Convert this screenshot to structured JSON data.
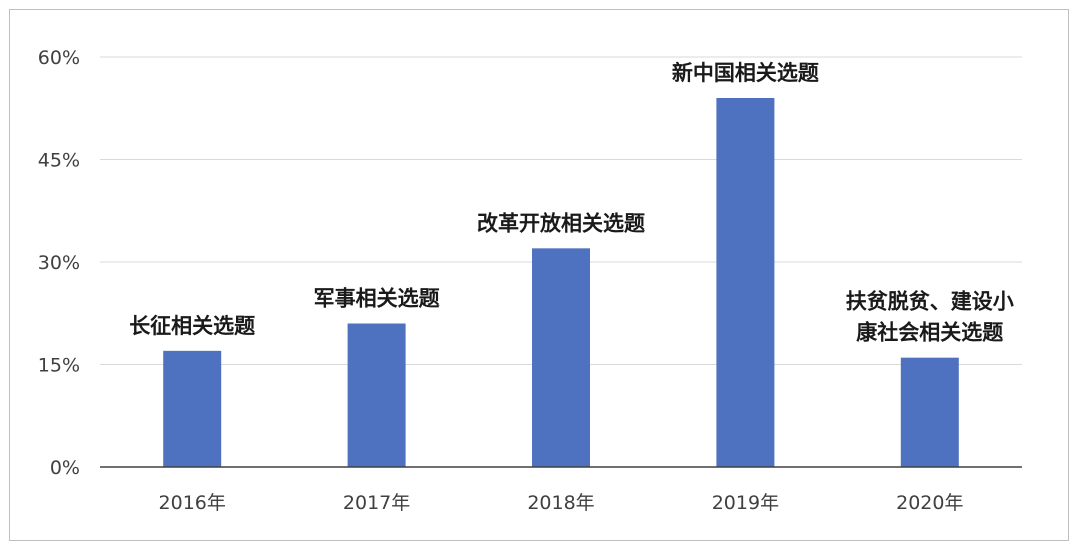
{
  "chart_data": {
    "type": "bar",
    "categories": [
      "2016年",
      "2017年",
      "2018年",
      "2019年",
      "2020年"
    ],
    "values": [
      17,
      21,
      32,
      54,
      16
    ],
    "data_labels": [
      [
        "长征相关选题"
      ],
      [
        "军事相关选题"
      ],
      [
        "改革开放相关选题"
      ],
      [
        "新中国相关选题"
      ],
      [
        "扶贫脱贫、建设小",
        "康社会相关选题"
      ]
    ],
    "y_ticks": [
      "0%",
      "15%",
      "30%",
      "45%",
      "60%"
    ],
    "ylim": [
      0,
      60
    ],
    "grid": true,
    "bar_color": "#4f72c0",
    "grid_color": "#d9d9d9",
    "axis_color": "#404040",
    "title": "",
    "xlabel": "",
    "ylabel": ""
  }
}
